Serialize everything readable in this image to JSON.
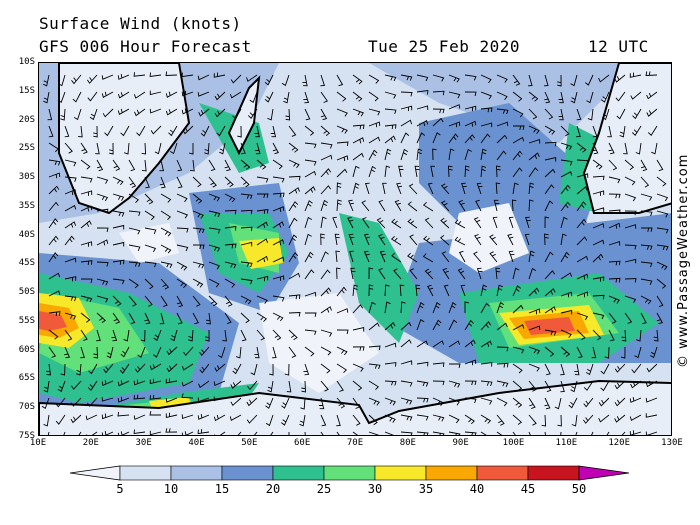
{
  "header": {
    "title": "Surface Wind (knots)",
    "model": "GFS 006 Hour Forecast",
    "date": "Tue 25 Feb 2020",
    "time": "12 UTC"
  },
  "map": {
    "lat_labels": [
      "10S",
      "15S",
      "20S",
      "25S",
      "30S",
      "35S",
      "40S",
      "45S",
      "50S",
      "55S",
      "60S",
      "65S",
      "70S",
      "75S"
    ],
    "lon_labels": [
      "10E",
      "20E",
      "30E",
      "40E",
      "50E",
      "60E",
      "70E",
      "80E",
      "90E",
      "100E",
      "110E",
      "120E",
      "130E"
    ],
    "lat_range": [
      -10,
      -75
    ],
    "lon_range": [
      10,
      130
    ]
  },
  "colorbar": {
    "ticks": [
      "5",
      "10",
      "15",
      "20",
      "25",
      "30",
      "35",
      "40",
      "45",
      "50"
    ],
    "colors": [
      "#f0f4fa",
      "#d6e2f2",
      "#aac0e4",
      "#6a92d0",
      "#2ec08e",
      "#62e07a",
      "#f8e82a",
      "#f8a800",
      "#f05a3a",
      "#c8141e",
      "#c000b4"
    ]
  },
  "copyright": "© www.PassageWeather.com"
}
